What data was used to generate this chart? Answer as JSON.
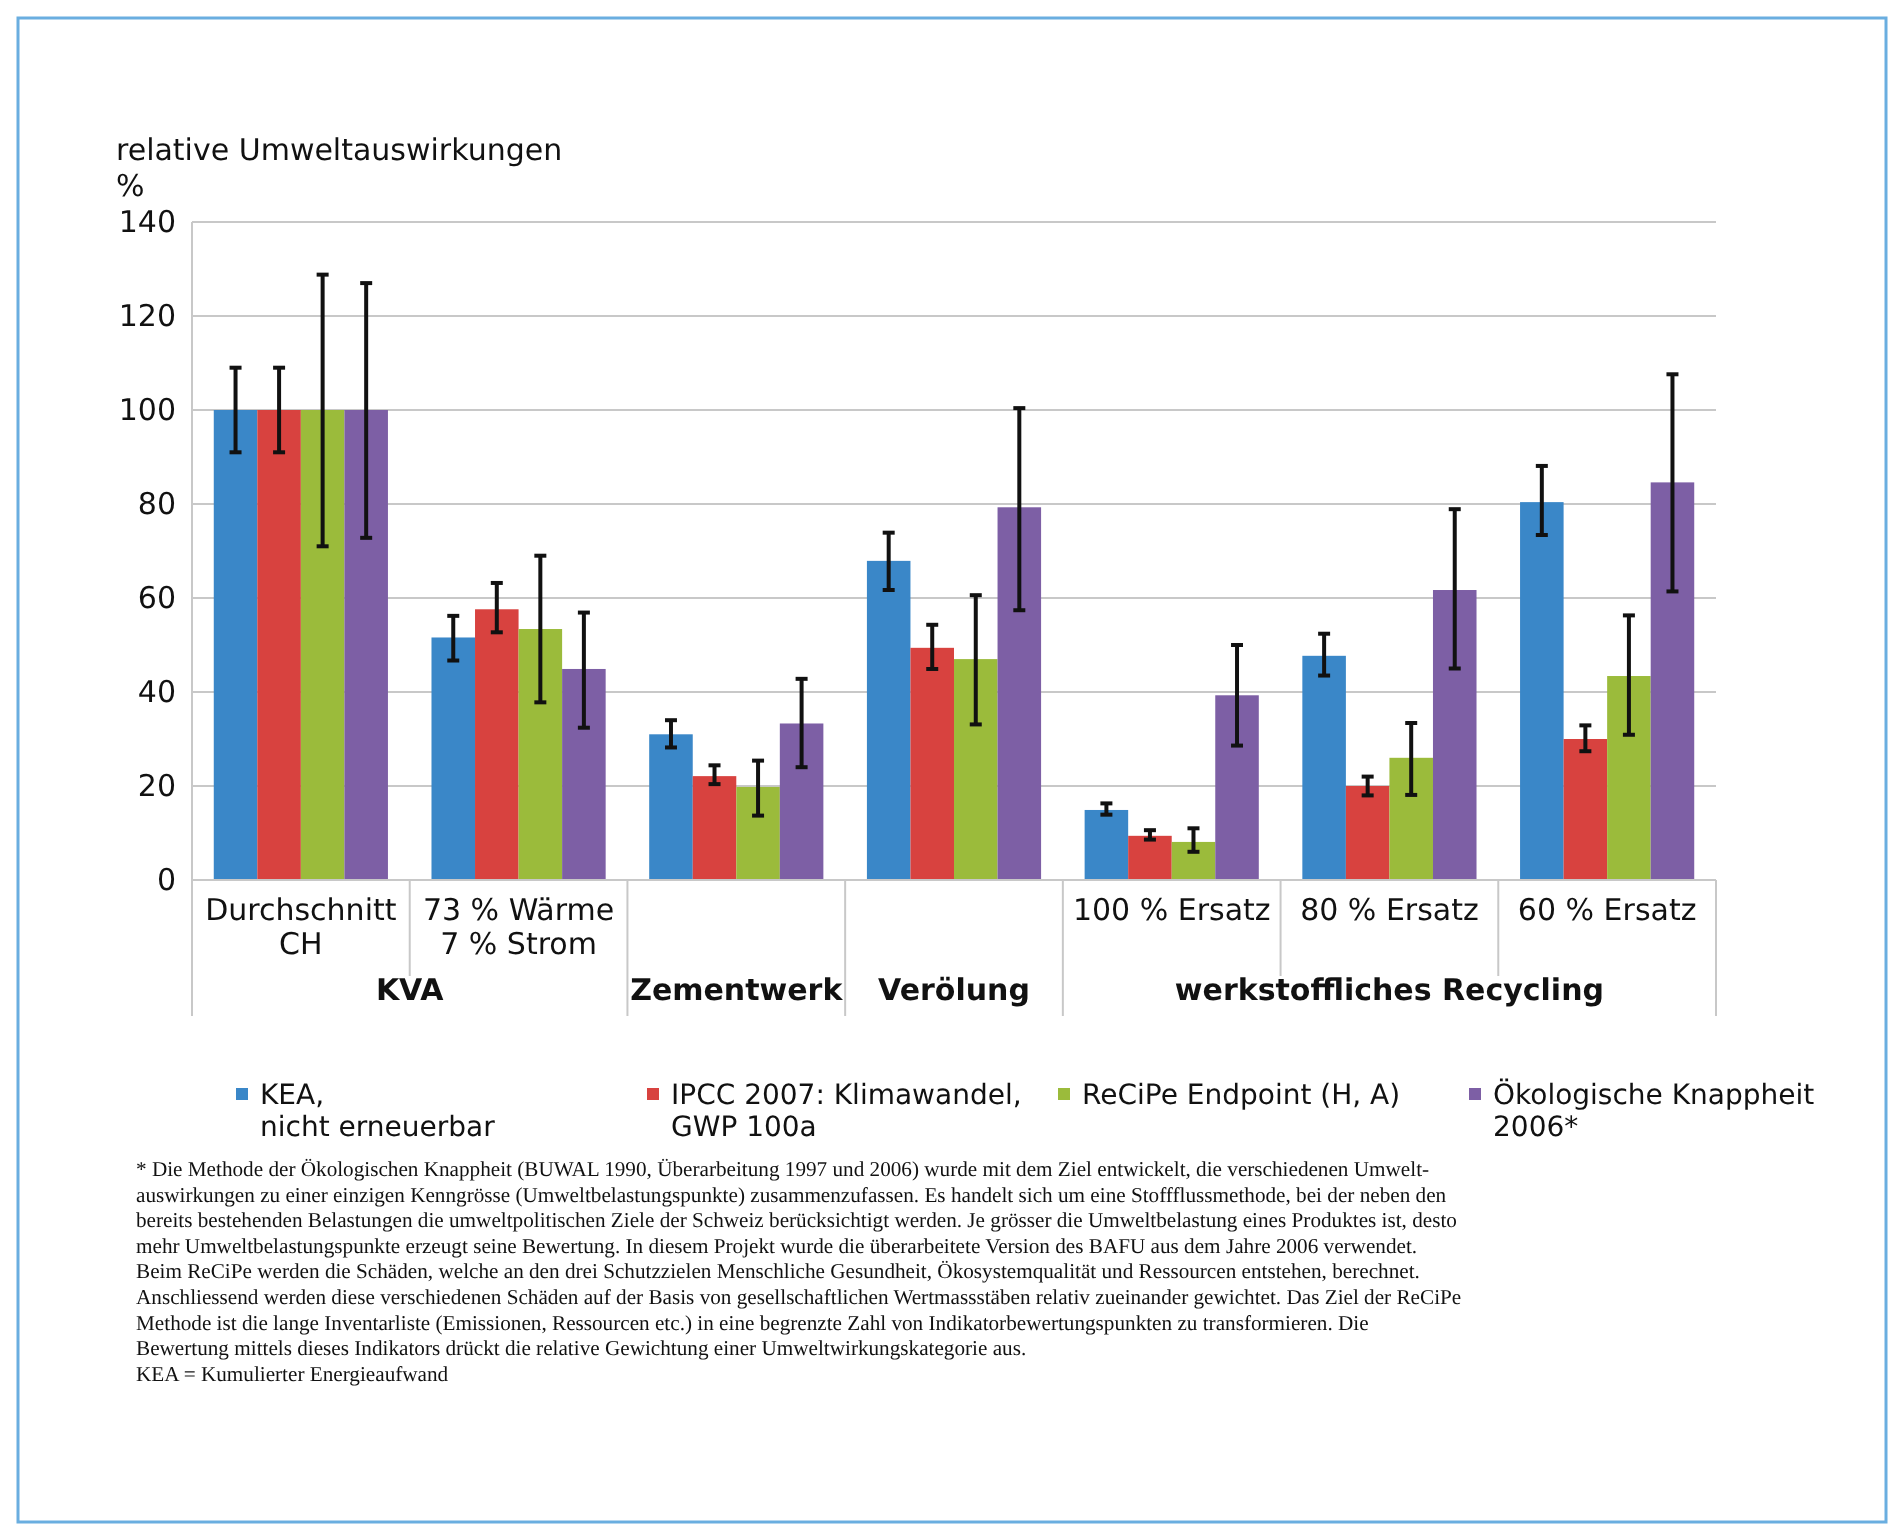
{
  "chart_data": {
    "type": "bar",
    "ylabel": "relative Umweltauswirkungen\n%",
    "categories": [
      "Durchschnitt\nCH",
      "73 % Wärme\n7 % Strom",
      null,
      null,
      "100 % Ersatz",
      "80 % Ersatz",
      "60 % Ersatz"
    ],
    "series": [
      {
        "name": "KEA,\nnicht erneuerbar",
        "color": "#3a87c8",
        "values": [
          100,
          51.6,
          31,
          67.9,
          14.9,
          47.7,
          80.4
        ],
        "errors": [
          [
            91,
            109
          ],
          [
            46.7,
            56.2
          ],
          [
            28.2,
            34
          ],
          [
            61.7,
            73.9
          ],
          [
            13.9,
            16.3
          ],
          [
            43.5,
            52.4
          ],
          [
            73.4,
            88.1
          ]
        ]
      },
      {
        "name": "IPCC 2007: Klimawandel,\nGWP 100a",
        "color": "#d8423f",
        "values": [
          100,
          57.6,
          22.1,
          49.4,
          9.4,
          20,
          30
        ],
        "errors": [
          [
            91,
            109
          ],
          [
            52.7,
            63.2
          ],
          [
            20.4,
            24.4
          ],
          [
            44.9,
            54.3
          ],
          [
            8.6,
            10.6
          ],
          [
            18,
            22
          ],
          [
            27.4,
            32.9
          ]
        ]
      },
      {
        "name": "ReCiPe Endpoint (H, A)",
        "color": "#9bbb3b",
        "values": [
          100,
          53.4,
          19.8,
          47,
          8.1,
          26,
          43.4
        ],
        "errors": [
          [
            71,
            128.8
          ],
          [
            37.8,
            69
          ],
          [
            13.7,
            25.4
          ],
          [
            33.1,
            60.6
          ],
          [
            6,
            11
          ],
          [
            18.1,
            33.4
          ],
          [
            30.9,
            56.3
          ]
        ]
      },
      {
        "name": "Ökologische Knappheit\n2006*",
        "color": "#7d5fa5",
        "values": [
          100,
          44.9,
          33.3,
          79.3,
          39.3,
          61.7,
          84.6
        ],
        "errors": [
          [
            72.8,
            127
          ],
          [
            32.4,
            56.9
          ],
          [
            24,
            42.8
          ],
          [
            57.4,
            100.4
          ],
          [
            28.6,
            50
          ],
          [
            45,
            78.9
          ],
          [
            61.4,
            107.6
          ]
        ]
      }
    ],
    "ylim": [
      0,
      140
    ],
    "yticks": [
      0,
      20,
      40,
      60,
      80,
      100,
      120,
      140
    ],
    "grid": "y",
    "legend": "bottom",
    "annotations": [
      "KVA",
      "Zementwerk",
      "Verölung",
      "werkstoffliches Recycling",
      "* Die Methode der Ökologischen Knappheit (BUWAL 1990, Überarbeitung 1997 und 2006) wurde mit dem Ziel entwickelt, die verschiedenen Umwelt-\nauswirkungen zu einer einzigen Kenngrösse (Umweltbelastungspunkte) zusammenzufassen. Es handelt sich um eine Stoffflussmethode, bei der neben den\nbereits bestehenden Belastungen die umweltpolitischen Ziele der Schweiz berücksichtigt werden. Je grösser die Umweltbelastung eines Produktes ist, desto\nmehr Umweltbelastungspunkte erzeugt seine Bewertung. In diesem Projekt wurde die überarbeitete Version des BAFU aus dem Jahre 2006 verwendet.\nBeim ReCiPe werden die Schäden, welche an den drei Schutzzielen Menschliche Gesundheit, Ökosystemqualität und Ressourcen entstehen, berechnet.\nAnschliessend werden diese verschiedenen Schäden auf der Basis von gesellschaftlichen Wertmassstäben relativ zueinander gewichtet. Das Ziel der ReCiPe\nMethode ist die lange Inventarliste (Emissionen, Ressourcen etc.) in eine begrenzte Zahl von Indikatorbewertungspunkten zu transformieren. Die\nBewertung mittels dieses Indikators drückt die relative Gewichtung einer Umweltwirkungskategorie aus.\nKEA = Kumulierter Energieaufwand"
    ]
  }
}
